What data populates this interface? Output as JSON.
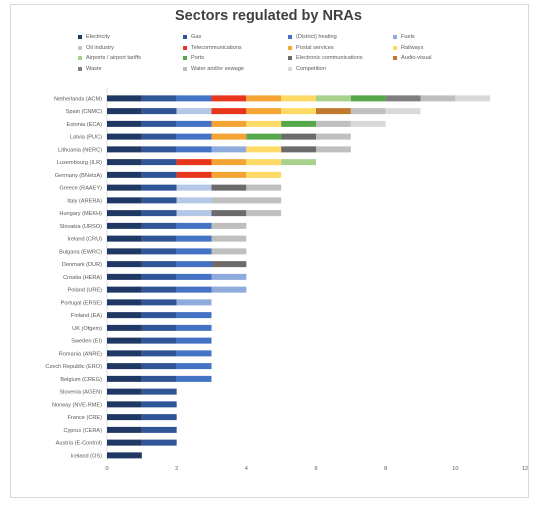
{
  "chart_data": {
    "type": "bar",
    "orientation": "horizontal",
    "stacked": true,
    "title": "Sectors regulated by NRAs",
    "xlabel": "",
    "ylabel": "",
    "xlim": [
      0,
      12
    ],
    "x_ticks": [
      "0",
      "2",
      "4",
      "6",
      "8",
      "10",
      "12"
    ],
    "grid": false,
    "legend_position": "top",
    "categories": [
      "Netherlands (ACM)",
      "Spain (CNMC)",
      "Estonia (ECA)",
      "Latvia (PUC)",
      "Lithuania (NERC)",
      "Luxembourg (ILR)",
      "Germany (BNetzA)",
      "Greece (RAAEY)",
      "Italy (ARERA)",
      "Hungary (MEKH)",
      "Slovakia (URSO)",
      "Ireland (CRU)",
      "Bulgaria (EWRC)",
      "Denmark (DUR)",
      "Croatia (HERA)",
      "Poland (URE)",
      "Portugal (ERSE)",
      "Finland (EA)",
      "UK (Ofgem)",
      "Sweden (EI)",
      "Romania (ANRE)",
      "Czech Republic (ERO)",
      "Belgium (CREG)",
      "Slovenia (AGEN)",
      "Norway (NVE-RME)",
      "France (CRE)",
      "Cyprus (CERA)",
      "Austria (E-Control)",
      "Iceland (OS)"
    ],
    "series": [
      {
        "name": "Electricity",
        "color": "#1f3864",
        "values": [
          1,
          1,
          1,
          1,
          1,
          1,
          1,
          1,
          1,
          1,
          1,
          1,
          1,
          1,
          1,
          1,
          1,
          1,
          1,
          1,
          1,
          1,
          1,
          1,
          1,
          1,
          1,
          1,
          1
        ]
      },
      {
        "name": "Gas",
        "color": "#2f5597",
        "values": [
          1,
          1,
          1,
          1,
          1,
          1,
          1,
          1,
          1,
          1,
          1,
          1,
          1,
          1,
          1,
          1,
          1,
          1,
          1,
          1,
          1,
          1,
          1,
          1,
          1,
          1,
          1,
          1,
          0
        ]
      },
      {
        "name": "(District) heating",
        "color": "#4472c4",
        "values": [
          1,
          0,
          1,
          1,
          1,
          0,
          0,
          0,
          0,
          0,
          1,
          1,
          1,
          1,
          1,
          1,
          0,
          1,
          1,
          1,
          1,
          1,
          1,
          0,
          0,
          0,
          0,
          0,
          0
        ]
      },
      {
        "name": "Fuels",
        "color": "#8faadc",
        "values": [
          0,
          0,
          0,
          0,
          1,
          0,
          0,
          0,
          0,
          0,
          0,
          0,
          0,
          0,
          1,
          1,
          1,
          0,
          0,
          0,
          0,
          0,
          0,
          0,
          0,
          0,
          0,
          0,
          0
        ]
      },
      {
        "name": "Oil industry",
        "color": "#b4c7e7",
        "values": [
          0,
          1,
          0,
          0,
          0,
          0,
          0,
          1,
          1,
          1,
          0,
          0,
          0,
          0,
          0,
          0,
          0,
          0,
          0,
          0,
          0,
          0,
          0,
          0,
          0,
          0,
          0,
          0,
          0
        ]
      },
      {
        "name": "Telecommunications",
        "color": "#e8361c",
        "values": [
          1,
          1,
          0,
          0,
          0,
          1,
          1,
          0,
          0,
          0,
          0,
          0,
          0,
          0,
          0,
          0,
          0,
          0,
          0,
          0,
          0,
          0,
          0,
          0,
          0,
          0,
          0,
          0,
          0
        ]
      },
      {
        "name": "Postal services",
        "color": "#f4a432",
        "values": [
          1,
          1,
          1,
          1,
          0,
          1,
          1,
          0,
          0,
          0,
          0,
          0,
          0,
          0,
          0,
          0,
          0,
          0,
          0,
          0,
          0,
          0,
          0,
          0,
          0,
          0,
          0,
          0,
          0
        ]
      },
      {
        "name": "Railways",
        "color": "#ffd966",
        "values": [
          1,
          1,
          1,
          0,
          1,
          1,
          1,
          0,
          0,
          0,
          0,
          0,
          0,
          0,
          0,
          0,
          0,
          0,
          0,
          0,
          0,
          0,
          0,
          0,
          0,
          0,
          0,
          0,
          0
        ]
      },
      {
        "name": "Airports / airport tariffs",
        "color": "#a9d18e",
        "values": [
          1,
          0,
          0,
          0,
          0,
          1,
          0,
          0,
          0,
          0,
          0,
          0,
          0,
          0,
          0,
          0,
          0,
          0,
          0,
          0,
          0,
          0,
          0,
          0,
          0,
          0,
          0,
          0,
          0
        ]
      },
      {
        "name": "Ports",
        "color": "#55a84a",
        "values": [
          1,
          0,
          1,
          1,
          0,
          0,
          0,
          0,
          0,
          0,
          0,
          0,
          0,
          0,
          0,
          0,
          0,
          0,
          0,
          0,
          0,
          0,
          0,
          0,
          0,
          0,
          0,
          0,
          0
        ]
      },
      {
        "name": "Electronic communications",
        "color": "#6b6b6b",
        "values": [
          0,
          0,
          0,
          1,
          1,
          0,
          0,
          1,
          0,
          1,
          0,
          0,
          0,
          1,
          0,
          0,
          0,
          0,
          0,
          0,
          0,
          0,
          0,
          0,
          0,
          0,
          0,
          0,
          0
        ]
      },
      {
        "name": "Audio-visual",
        "color": "#c0782c",
        "values": [
          0,
          1,
          0,
          0,
          0,
          0,
          0,
          0,
          0,
          0,
          0,
          0,
          0,
          0,
          0,
          0,
          0,
          0,
          0,
          0,
          0,
          0,
          0,
          0,
          0,
          0,
          0,
          0,
          0
        ]
      },
      {
        "name": "Waste",
        "color": "#7f7f7f",
        "values": [
          1,
          0,
          0,
          0,
          0,
          0,
          0,
          0,
          0,
          0,
          0,
          0,
          0,
          0,
          0,
          0,
          0,
          0,
          0,
          0,
          0,
          0,
          0,
          0,
          0,
          0,
          0,
          0,
          0
        ]
      },
      {
        "name": "Water and/or sewage",
        "color": "#bfbfbf",
        "values": [
          1,
          1,
          1,
          1,
          1,
          0,
          0,
          1,
          2,
          1,
          1,
          1,
          1,
          0,
          0,
          0,
          0,
          0,
          0,
          0,
          0,
          0,
          0,
          0,
          0,
          0,
          0,
          0,
          0
        ]
      },
      {
        "name": "Competition",
        "color": "#d9d9d9",
        "values": [
          1,
          1,
          1,
          0,
          0,
          0,
          0,
          0,
          0,
          0,
          0,
          0,
          0,
          0,
          0,
          0,
          0,
          0,
          0,
          0,
          0,
          0,
          0,
          0,
          0,
          0,
          0,
          0,
          0
        ]
      }
    ]
  }
}
